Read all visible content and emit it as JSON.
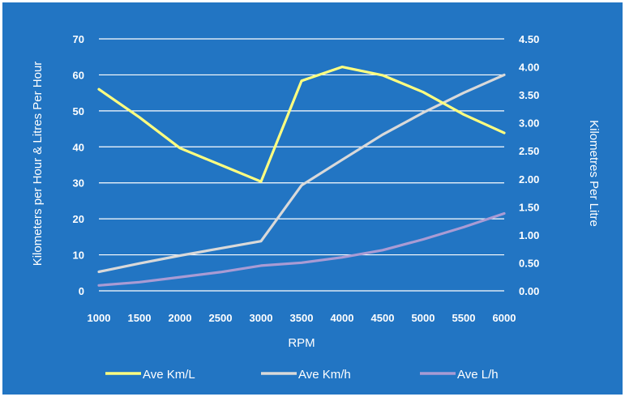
{
  "chart_data": {
    "type": "line",
    "title": "",
    "xlabel": "RPM",
    "ylabel_left": "Kilometers per Hour & Litres Per Hour",
    "ylabel_right": "Kilometres Per Litre",
    "categories": [
      "1000",
      "1500",
      "2000",
      "2500",
      "3000",
      "3500",
      "4000",
      "4500",
      "5000",
      "5500",
      "6000"
    ],
    "y_left": {
      "min": 0,
      "max": 70,
      "ticks": [
        "0",
        "10",
        "20",
        "30",
        "40",
        "50",
        "60",
        "70"
      ]
    },
    "y_right": {
      "min": 0,
      "max": 4.5,
      "ticks": [
        "0.00",
        "0.50",
        "1.00",
        "1.50",
        "2.00",
        "2.50",
        "3.00",
        "3.50",
        "4.00",
        "4.50"
      ]
    },
    "series": [
      {
        "name": "Ave Km/L",
        "axis": "right",
        "color": "#ffff80",
        "values": [
          3.6,
          3.1,
          2.55,
          2.25,
          1.95,
          3.75,
          4.0,
          3.85,
          3.55,
          3.15,
          2.82
        ]
      },
      {
        "name": "Ave Km/h",
        "axis": "left",
        "color": "#d9d9d9",
        "values": [
          5.3,
          7.6,
          9.8,
          11.8,
          13.8,
          29.3,
          36.4,
          43.4,
          49.5,
          55.0,
          60.0
        ]
      },
      {
        "name": "Ave L/h",
        "axis": "left",
        "color": "#a99bd4",
        "values": [
          1.5,
          2.4,
          3.8,
          5.2,
          7.0,
          7.8,
          9.3,
          11.3,
          14.3,
          17.7,
          21.5
        ]
      }
    ],
    "grid": true,
    "legend": "bottom",
    "background": "#2275c3"
  }
}
